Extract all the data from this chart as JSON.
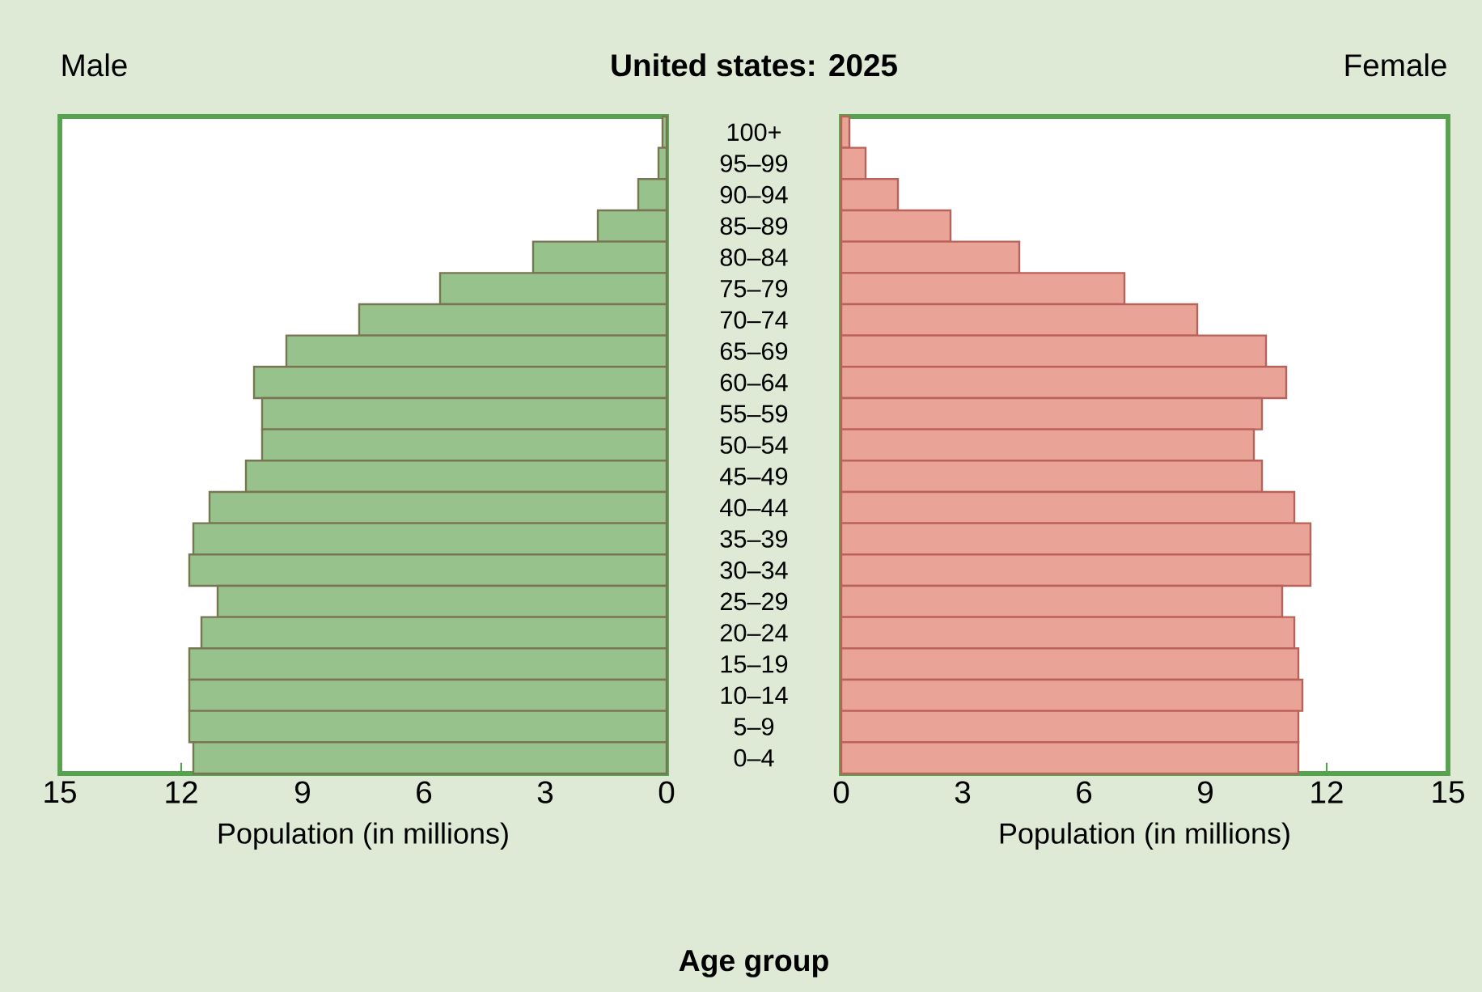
{
  "chart_data": [
    {
      "type": "bar",
      "orientation": "horizontal",
      "title": "United states: 2025",
      "xlabel": "Population (in millions)",
      "ylabel": "Age group",
      "categories": [
        "100+",
        "95–99",
        "90–94",
        "85–89",
        "80–84",
        "75–79",
        "70–74",
        "65–69",
        "60–64",
        "55–59",
        "50–54",
        "45–49",
        "40–44",
        "35–39",
        "30–34",
        "25–29",
        "20–24",
        "15–19",
        "10–14",
        "5–9",
        "0–4"
      ],
      "series": [
        {
          "name": "Male",
          "color": "#98c28c",
          "values": [
            0.1,
            0.2,
            0.7,
            1.7,
            3.3,
            5.6,
            7.6,
            9.4,
            10.2,
            10.0,
            10.0,
            10.4,
            11.3,
            11.7,
            11.8,
            11.1,
            11.5,
            11.8,
            11.8,
            11.8,
            11.7
          ]
        }
      ],
      "xlim": [
        15,
        0
      ],
      "xticks": [
        15,
        12,
        9,
        6,
        3,
        0
      ]
    },
    {
      "type": "bar",
      "orientation": "horizontal",
      "xlabel": "Population (in millions)",
      "categories": [
        null,
        null,
        null,
        null,
        null,
        null,
        null,
        null,
        null,
        null,
        null,
        null,
        null,
        null,
        null,
        null,
        null,
        null,
        null,
        null,
        null
      ],
      "series": [
        {
          "name": "Female",
          "color": "#e9a497",
          "values": [
            0.2,
            0.6,
            1.4,
            2.7,
            4.4,
            7.0,
            8.8,
            10.5,
            11.0,
            10.4,
            10.2,
            10.4,
            11.2,
            11.6,
            11.6,
            10.9,
            11.2,
            11.3,
            11.4,
            11.3,
            11.3
          ]
        }
      ],
      "xlim": [
        0,
        15
      ],
      "xticks": [
        0,
        3,
        6,
        9,
        12,
        15
      ]
    }
  ]
}
